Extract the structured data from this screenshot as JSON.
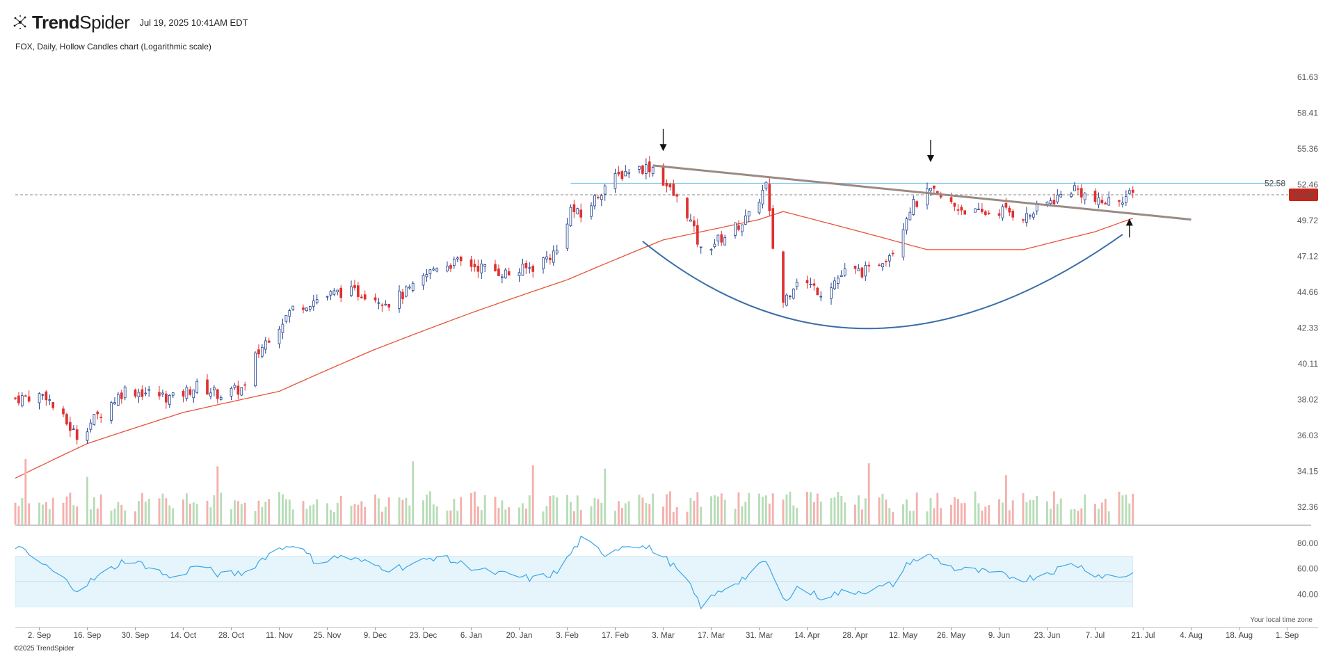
{
  "header": {
    "brand_bold": "Trend",
    "brand_regular": "Spider",
    "timestamp": "Jul 19, 2025 10:41AM EDT"
  },
  "subtitle": "FOX, Daily, Hollow Candles chart (Logarithmic scale)",
  "footer": {
    "copyright": "©2025 TrendSpider",
    "timezone_note": "Your local time zone"
  },
  "colors": {
    "up": "#1f3f8f",
    "down": "#e03030",
    "sma": "#e8523a",
    "resistance": "#7ec3ea",
    "trendline": "#9a8a84",
    "cup": "#3a6fa8",
    "rsi_line": "#3aa6e8",
    "rsi_band": "#e6f5fb",
    "vol_up": "#b7ddb7",
    "vol_down": "#f4b1ad",
    "price_tag": "#c0281e"
  },
  "chart_data": [
    {
      "type": "candlestick",
      "name": "price",
      "scale": "log",
      "ylim": [
        31.6,
        63.0
      ],
      "y_ticks": [
        "61.63",
        "58.41",
        "55.36",
        "52.46",
        "49.72",
        "47.12",
        "44.66",
        "42.33",
        "40.11",
        "38.02",
        "36.03",
        "34.15",
        "32.36"
      ],
      "x_ticks": [
        "2. Sep",
        "16. Sep",
        "30. Sep",
        "14. Oct",
        "28. Oct",
        "11. Nov",
        "25. Nov",
        "9. Dec",
        "23. Dec",
        "6. Jan",
        "20. Jan",
        "3. Feb",
        "17. Feb",
        "3. Mar",
        "17. Mar",
        "31. Mar",
        "14. Apr",
        "28. Apr",
        "12. May",
        "26. May",
        "9. Jun",
        "23. Jun",
        "7. Jul",
        "21. Jul",
        "4. Aug",
        "18. Aug",
        "1. Sep"
      ],
      "x_range": [
        "2024-08-26",
        "2025-09-08"
      ],
      "last_price": "51.68",
      "resistance_level": "52.58",
      "close_keypoints": [
        [
          "2024-08-26",
          38.1
        ],
        [
          "2024-09-04",
          38.3
        ],
        [
          "2024-09-06",
          37.6
        ],
        [
          "2024-09-13",
          36.0
        ],
        [
          "2024-09-20",
          37.3
        ],
        [
          "2024-09-27",
          38.6
        ],
        [
          "2024-10-04",
          38.4
        ],
        [
          "2024-10-11",
          38.1
        ],
        [
          "2024-10-18",
          38.8
        ],
        [
          "2024-10-25",
          38.3
        ],
        [
          "2024-11-01",
          38.7
        ],
        [
          "2024-11-04",
          40.5
        ],
        [
          "2024-11-08",
          41.8
        ],
        [
          "2024-11-15",
          43.6
        ],
        [
          "2024-11-22",
          44.2
        ],
        [
          "2024-11-29",
          44.7
        ],
        [
          "2024-12-06",
          44.6
        ],
        [
          "2024-12-13",
          44.0
        ],
        [
          "2024-12-20",
          44.9
        ],
        [
          "2024-12-27",
          46.5
        ],
        [
          "2025-01-03",
          46.7
        ],
        [
          "2025-01-10",
          46.3
        ],
        [
          "2025-01-17",
          45.9
        ],
        [
          "2025-01-24",
          46.4
        ],
        [
          "2025-01-31",
          47.5
        ],
        [
          "2025-02-04",
          50.6
        ],
        [
          "2025-02-07",
          50.0
        ],
        [
          "2025-02-14",
          52.4
        ],
        [
          "2025-02-21",
          53.7
        ],
        [
          "2025-02-28",
          53.9
        ],
        [
          "2025-03-05",
          52.0
        ],
        [
          "2025-03-10",
          50.3
        ],
        [
          "2025-03-14",
          47.5
        ],
        [
          "2025-03-21",
          48.6
        ],
        [
          "2025-03-28",
          50.0
        ],
        [
          "2025-04-02",
          52.4
        ],
        [
          "2025-04-04",
          47.8
        ],
        [
          "2025-04-07",
          44.0
        ],
        [
          "2025-04-11",
          45.6
        ],
        [
          "2025-04-18",
          44.7
        ],
        [
          "2025-04-25",
          46.0
        ],
        [
          "2025-05-02",
          46.1
        ],
        [
          "2025-05-09",
          47.6
        ],
        [
          "2025-05-14",
          50.7
        ],
        [
          "2025-05-20",
          51.9
        ],
        [
          "2025-05-27",
          50.8
        ],
        [
          "2025-06-03",
          50.2
        ],
        [
          "2025-06-10",
          50.5
        ],
        [
          "2025-06-17",
          50.0
        ],
        [
          "2025-06-24",
          51.2
        ],
        [
          "2025-07-01",
          52.2
        ],
        [
          "2025-07-08",
          51.0
        ],
        [
          "2025-07-14",
          51.4
        ],
        [
          "2025-07-18",
          51.68
        ]
      ],
      "sma_keypoints": [
        [
          "2024-08-26",
          33.8
        ],
        [
          "2024-09-16",
          35.6
        ],
        [
          "2024-10-14",
          37.3
        ],
        [
          "2024-11-11",
          38.5
        ],
        [
          "2024-12-09",
          41.0
        ],
        [
          "2025-01-06",
          43.3
        ],
        [
          "2025-02-03",
          45.5
        ],
        [
          "2025-03-03",
          48.3
        ],
        [
          "2025-03-31",
          49.8
        ],
        [
          "2025-04-07",
          50.4
        ],
        [
          "2025-04-28",
          49.0
        ],
        [
          "2025-05-19",
          47.6
        ],
        [
          "2025-06-16",
          47.6
        ],
        [
          "2025-07-07",
          48.9
        ],
        [
          "2025-07-18",
          49.9
        ]
      ],
      "annotations": {
        "down_arrows": [
          "2025-03-03",
          "2025-05-20"
        ],
        "up_arrow": "2025-07-17",
        "trendline": [
          [
            "2025-02-28",
            54.0
          ],
          [
            "2025-08-04",
            49.8
          ]
        ],
        "cup_curve": [
          [
            "2025-02-25",
            48.2
          ],
          [
            "2025-05-03",
            42.3
          ],
          [
            "2025-07-15",
            48.7
          ]
        ]
      }
    },
    {
      "type": "bar",
      "name": "volume",
      "values_relative": "daily volume, green up / red down"
    },
    {
      "type": "line",
      "name": "rsi",
      "ylim": [
        26,
        86
      ],
      "y_ticks": [
        "80.00",
        "60.00",
        "40.00"
      ],
      "band": [
        30,
        70
      ],
      "midline": 50,
      "keypoints": [
        [
          "2024-08-26",
          78
        ],
        [
          "2024-09-06",
          58
        ],
        [
          "2024-09-13",
          44
        ],
        [
          "2024-09-20",
          55
        ],
        [
          "2024-09-27",
          67
        ],
        [
          "2024-10-04",
          62
        ],
        [
          "2024-10-11",
          52
        ],
        [
          "2024-10-18",
          63
        ],
        [
          "2024-10-25",
          55
        ],
        [
          "2024-11-01",
          57
        ],
        [
          "2024-11-08",
          72
        ],
        [
          "2024-11-15",
          80
        ],
        [
          "2024-11-22",
          65
        ],
        [
          "2024-11-29",
          70
        ],
        [
          "2024-12-06",
          65
        ],
        [
          "2024-12-13",
          60
        ],
        [
          "2024-12-20",
          63
        ],
        [
          "2024-12-27",
          70
        ],
        [
          "2025-01-03",
          64
        ],
        [
          "2025-01-10",
          58
        ],
        [
          "2025-01-17",
          55
        ],
        [
          "2025-01-24",
          52
        ],
        [
          "2025-01-31",
          57
        ],
        [
          "2025-02-07",
          83
        ],
        [
          "2025-02-14",
          72
        ],
        [
          "2025-02-21",
          80
        ],
        [
          "2025-02-28",
          75
        ],
        [
          "2025-03-05",
          65
        ],
        [
          "2025-03-10",
          50
        ],
        [
          "2025-03-14",
          31
        ],
        [
          "2025-03-21",
          45
        ],
        [
          "2025-03-28",
          55
        ],
        [
          "2025-04-02",
          66
        ],
        [
          "2025-04-07",
          35
        ],
        [
          "2025-04-11",
          45
        ],
        [
          "2025-04-18",
          38
        ],
        [
          "2025-04-25",
          42
        ],
        [
          "2025-05-02",
          43
        ],
        [
          "2025-05-09",
          48
        ],
        [
          "2025-05-14",
          66
        ],
        [
          "2025-05-20",
          70
        ],
        [
          "2025-05-27",
          60
        ],
        [
          "2025-06-03",
          58
        ],
        [
          "2025-06-10",
          55
        ],
        [
          "2025-06-17",
          52
        ],
        [
          "2025-06-24",
          58
        ],
        [
          "2025-07-01",
          64
        ],
        [
          "2025-07-08",
          55
        ],
        [
          "2025-07-14",
          54
        ],
        [
          "2025-07-18",
          56
        ]
      ]
    }
  ]
}
